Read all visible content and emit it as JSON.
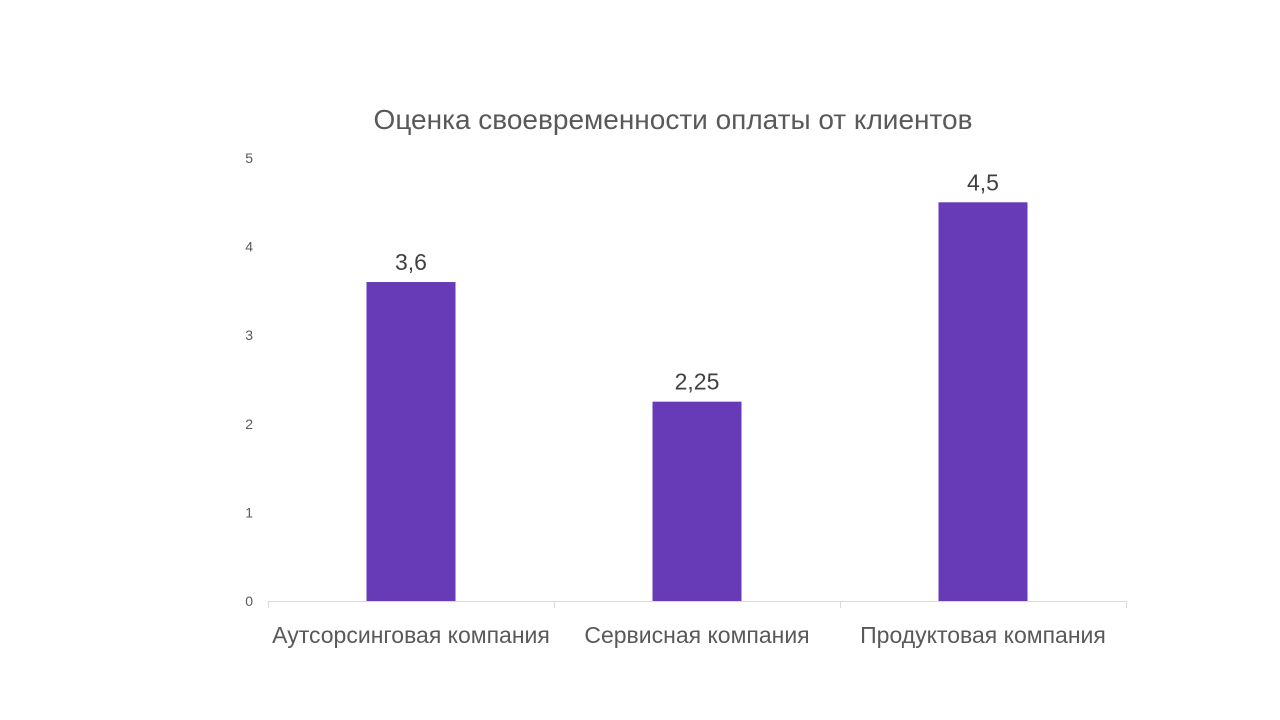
{
  "chart_data": {
    "type": "bar",
    "title": "Оценка своевременности оплаты от клиентов",
    "categories": [
      "Аутсорсинговая компания",
      "Сервисная компания",
      "Продуктовая компания"
    ],
    "values": [
      3.6,
      2.25,
      4.5
    ],
    "data_labels": [
      "3,6",
      "2,25",
      "4,5"
    ],
    "y_ticks": [
      0,
      1,
      2,
      3,
      4,
      5
    ],
    "ylim": [
      0,
      5
    ],
    "grid": false,
    "legend": "none",
    "bar_color": "#673AB7",
    "axis_color": "#D9D9D9"
  }
}
